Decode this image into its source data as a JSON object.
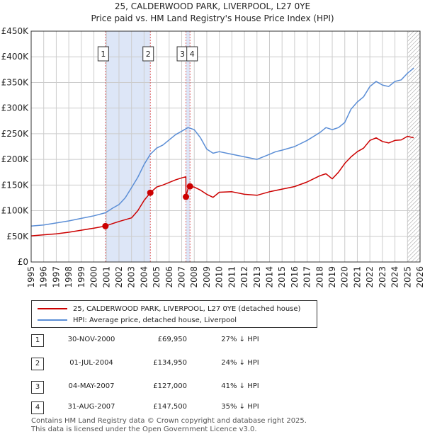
{
  "title_line1": "25, CALDERWOOD PARK, LIVERPOOL, L27 0YE",
  "title_line2": "Price paid vs. HM Land Registry's House Price Index (HPI)",
  "legend": {
    "property_label": "25, CALDERWOOD PARK, LIVERPOOL, L27 0YE (detached house)",
    "hpi_label": "HPI: Average price, detached house, Liverpool"
  },
  "sales": [
    {
      "num": "1",
      "date": "30-NOV-2000",
      "price": "£69,950",
      "hpi": "27% ↓ HPI"
    },
    {
      "num": "2",
      "date": "01-JUL-2004",
      "price": "£134,950",
      "hpi": "24% ↓ HPI"
    },
    {
      "num": "3",
      "date": "04-MAY-2007",
      "price": "£127,000",
      "hpi": "41% ↓ HPI"
    },
    {
      "num": "4",
      "date": "31-AUG-2007",
      "price": "£147,500",
      "hpi": "35% ↓ HPI"
    }
  ],
  "footer_line1": "Contains HM Land Registry data © Crown copyright and database right 2025.",
  "footer_line2": "This data is licensed under the Open Government Licence v3.0.",
  "colors": {
    "property": "#cc0000",
    "hpi": "#5b8ed6",
    "shade": "#dde6f7",
    "grid": "#cccccc",
    "marker_line": "#e06060"
  },
  "chart_data": {
    "type": "line",
    "title": "Price paid vs. HM Land Registry's House Price Index (HPI)",
    "xlabel": "",
    "ylabel": "",
    "xlim": [
      1995,
      2026
    ],
    "ylim": [
      0,
      450000
    ],
    "y_ticks": [
      0,
      50000,
      100000,
      150000,
      200000,
      250000,
      300000,
      350000,
      400000,
      450000
    ],
    "y_tick_labels": [
      "£0",
      "£50K",
      "£100K",
      "£150K",
      "£200K",
      "£250K",
      "£300K",
      "£350K",
      "£400K",
      "£450K"
    ],
    "x_ticks": [
      1995,
      1996,
      1997,
      1998,
      1999,
      2000,
      2001,
      2002,
      2003,
      2004,
      2005,
      2006,
      2007,
      2008,
      2009,
      2010,
      2011,
      2012,
      2013,
      2014,
      2015,
      2016,
      2017,
      2018,
      2019,
      2020,
      2021,
      2022,
      2023,
      2024,
      2025,
      2026
    ],
    "grid": true,
    "shaded_periods": [
      [
        2000.92,
        2004.5
      ],
      [
        2007.34,
        2007.66
      ]
    ],
    "hatched_from": 2025.0,
    "series": [
      {
        "name": "HPI: Average price, detached house, Liverpool",
        "color": "#5b8ed6",
        "x": [
          1995,
          1996,
          1997,
          1998,
          1999,
          2000,
          2000.92,
          2001.5,
          2002,
          2002.5,
          2003,
          2003.5,
          2004,
          2004.5,
          2005,
          2005.5,
          2006,
          2006.5,
          2007,
          2007.5,
          2008,
          2008.5,
          2009,
          2009.5,
          2010,
          2011,
          2012,
          2013,
          2014,
          2014.5,
          2015,
          2016,
          2017,
          2018,
          2018.5,
          2019,
          2019.5,
          2020,
          2020.5,
          2021,
          2021.5,
          2022,
          2022.5,
          2023,
          2023.5,
          2024,
          2024.5,
          2025,
          2025.5
        ],
        "y": [
          70000,
          72000,
          76000,
          80000,
          85000,
          90000,
          96000,
          105000,
          112000,
          125000,
          145000,
          165000,
          190000,
          210000,
          222000,
          228000,
          238000,
          248000,
          255000,
          262000,
          258000,
          242000,
          220000,
          212000,
          215000,
          210000,
          205000,
          200000,
          210000,
          215000,
          218000,
          225000,
          237000,
          252000,
          262000,
          258000,
          262000,
          272000,
          298000,
          312000,
          322000,
          342000,
          352000,
          345000,
          342000,
          352000,
          355000,
          368000,
          378000
        ]
      },
      {
        "name": "25, CALDERWOOD PARK, LIVERPOOL, L27 0YE (detached house)",
        "color": "#cc0000",
        "x": [
          1995,
          1996,
          1997,
          1998,
          1999,
          2000,
          2000.92,
          2001.5,
          2002,
          2003,
          2003.5,
          2004,
          2004.5,
          2005,
          2005.5,
          2006,
          2006.5,
          2007,
          2007.33,
          2007.34,
          2007.5,
          2007.66,
          2008,
          2008.5,
          2009,
          2009.5,
          2010,
          2011,
          2012,
          2013,
          2014,
          2015,
          2016,
          2017,
          2018,
          2018.5,
          2019,
          2019.5,
          2020,
          2020.5,
          2021,
          2021.5,
          2022,
          2022.5,
          2023,
          2023.5,
          2024,
          2024.5,
          2025,
          2025.5
        ],
        "y": [
          51000,
          53000,
          55000,
          58000,
          62000,
          66000,
          69950,
          75000,
          79000,
          86000,
          100000,
          120000,
          134950,
          146000,
          150000,
          155000,
          160000,
          164000,
          166000,
          127000,
          143000,
          147500,
          146000,
          140000,
          132000,
          126000,
          136000,
          137000,
          132000,
          130000,
          137000,
          142000,
          147000,
          156000,
          168000,
          172000,
          162000,
          175000,
          192000,
          205000,
          215000,
          222000,
          237000,
          242000,
          235000,
          232000,
          237000,
          238000,
          245000,
          242000
        ]
      }
    ],
    "sale_points": [
      {
        "label": "1",
        "x": 2000.92,
        "y": 69950
      },
      {
        "label": "2",
        "x": 2004.5,
        "y": 134950
      },
      {
        "label": "3",
        "x": 2007.34,
        "y": 127000
      },
      {
        "label": "4",
        "x": 2007.66,
        "y": 147500
      }
    ]
  }
}
